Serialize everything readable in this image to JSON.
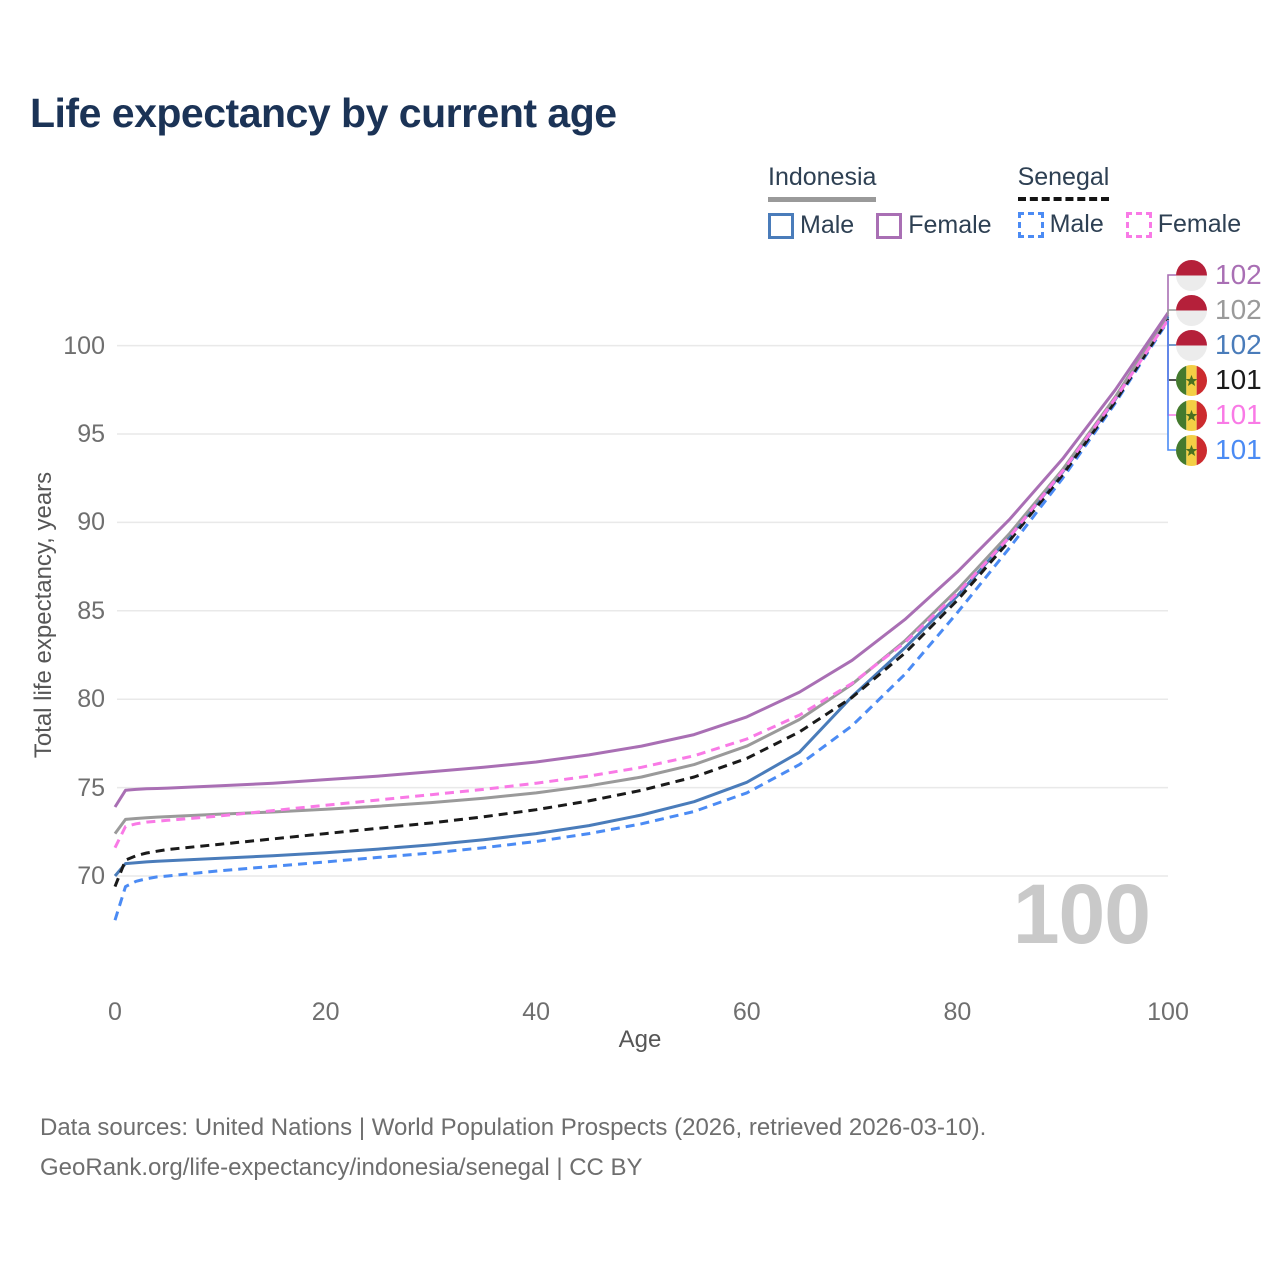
{
  "title": "Life expectancy by current age",
  "legend": {
    "groups": [
      {
        "country": "Indonesia",
        "line_style": "solid",
        "items": [
          {
            "label": "Male",
            "color": "#4a7cba"
          },
          {
            "label": "Female",
            "color": "#a96fb4"
          }
        ]
      },
      {
        "country": "Senegal",
        "line_style": "dashed",
        "items": [
          {
            "label": "Male",
            "color": "#4b8bf4"
          },
          {
            "label": "Female",
            "color": "#f97ae6"
          }
        ]
      }
    ]
  },
  "chart_data": {
    "type": "line",
    "title": "Life expectancy by current age",
    "xlabel": "Age",
    "ylabel": "Total life expectancy, years",
    "xlim": [
      0,
      100
    ],
    "ylim": [
      66,
      103.5
    ],
    "x_ticks": [
      0,
      20,
      40,
      60,
      80,
      100
    ],
    "y_ticks": [
      70,
      75,
      80,
      85,
      90,
      95,
      100
    ],
    "grid": "horizontal",
    "legend_position": "top-right",
    "x": [
      0,
      1,
      2,
      3,
      4,
      5,
      10,
      15,
      20,
      25,
      30,
      35,
      40,
      45,
      50,
      55,
      60,
      65,
      70,
      75,
      80,
      85,
      90,
      95,
      100
    ],
    "series": [
      {
        "name": "Indonesia Male",
        "country": "Indonesia",
        "sex": "Male",
        "color": "#4a7cba",
        "dash": false,
        "flag": "indonesia",
        "end_label": "102",
        "values": [
          70.0,
          70.7,
          70.75,
          70.8,
          70.83,
          70.86,
          71.0,
          71.15,
          71.32,
          71.52,
          71.76,
          72.05,
          72.4,
          72.85,
          73.45,
          74.2,
          75.3,
          77.0,
          80.15,
          82.9,
          85.85,
          89.2,
          92.85,
          96.95,
          101.65
        ]
      },
      {
        "name": "Senegal Male",
        "country": "Senegal",
        "sex": "Male",
        "color": "#4b8bf4",
        "dash": true,
        "flag": "senegal",
        "end_label": "101",
        "values": [
          67.5,
          69.4,
          69.7,
          69.85,
          69.95,
          70.0,
          70.3,
          70.55,
          70.8,
          71.05,
          71.3,
          71.6,
          71.95,
          72.4,
          72.95,
          73.65,
          74.7,
          76.3,
          78.5,
          81.4,
          84.9,
          88.6,
          92.5,
          96.75,
          101.4
        ]
      },
      {
        "name": "Senegal",
        "country": "Senegal",
        "sex": "Both",
        "color": "#1a1a1a",
        "dash": true,
        "flag": "senegal",
        "end_label": "101",
        "values": [
          69.4,
          70.9,
          71.15,
          71.3,
          71.4,
          71.5,
          71.8,
          72.1,
          72.4,
          72.7,
          73.0,
          73.35,
          73.75,
          74.25,
          74.85,
          75.6,
          76.65,
          78.15,
          80.1,
          82.6,
          85.6,
          89.0,
          92.7,
          96.85,
          101.5
        ]
      },
      {
        "name": "Indonesia",
        "country": "Indonesia",
        "sex": "Both",
        "color": "#9a9a9a",
        "dash": false,
        "flag": "indonesia",
        "end_label": "102",
        "values": [
          72.4,
          73.2,
          73.25,
          73.3,
          73.33,
          73.36,
          73.5,
          73.62,
          73.77,
          73.95,
          74.15,
          74.4,
          74.7,
          75.1,
          75.6,
          76.3,
          77.35,
          78.85,
          80.85,
          83.3,
          86.2,
          89.4,
          93.0,
          97.1,
          101.75
        ]
      },
      {
        "name": "Senegal Female",
        "country": "Senegal",
        "sex": "Female",
        "color": "#f97ae6",
        "dash": true,
        "flag": "senegal",
        "end_label": "101",
        "values": [
          71.6,
          72.8,
          72.95,
          73.05,
          73.1,
          73.15,
          73.4,
          73.7,
          74.0,
          74.3,
          74.6,
          74.9,
          75.25,
          75.65,
          76.15,
          76.8,
          77.75,
          79.1,
          80.9,
          83.2,
          86.0,
          89.2,
          92.9,
          97.0,
          101.45
        ]
      },
      {
        "name": "Indonesia Female",
        "country": "Indonesia",
        "sex": "Female",
        "color": "#a96fb4",
        "dash": false,
        "flag": "indonesia",
        "end_label": "102",
        "values": [
          73.9,
          74.85,
          74.9,
          74.93,
          74.95,
          74.97,
          75.1,
          75.25,
          75.45,
          75.65,
          75.9,
          76.15,
          76.45,
          76.85,
          77.35,
          78.0,
          79.0,
          80.4,
          82.2,
          84.5,
          87.2,
          90.2,
          93.6,
          97.5,
          101.85
        ]
      }
    ],
    "end_labels_top_to_bottom": [
      "102",
      "102",
      "102",
      "101",
      "101",
      "101"
    ]
  },
  "watermark_current_age": "100",
  "footer": {
    "line1": "Data sources: United Nations | World Population Prospects (2026, retrieved 2026-03-10).",
    "line2": "GeoRank.org/life-expectancy/indonesia/senegal | CC BY"
  }
}
